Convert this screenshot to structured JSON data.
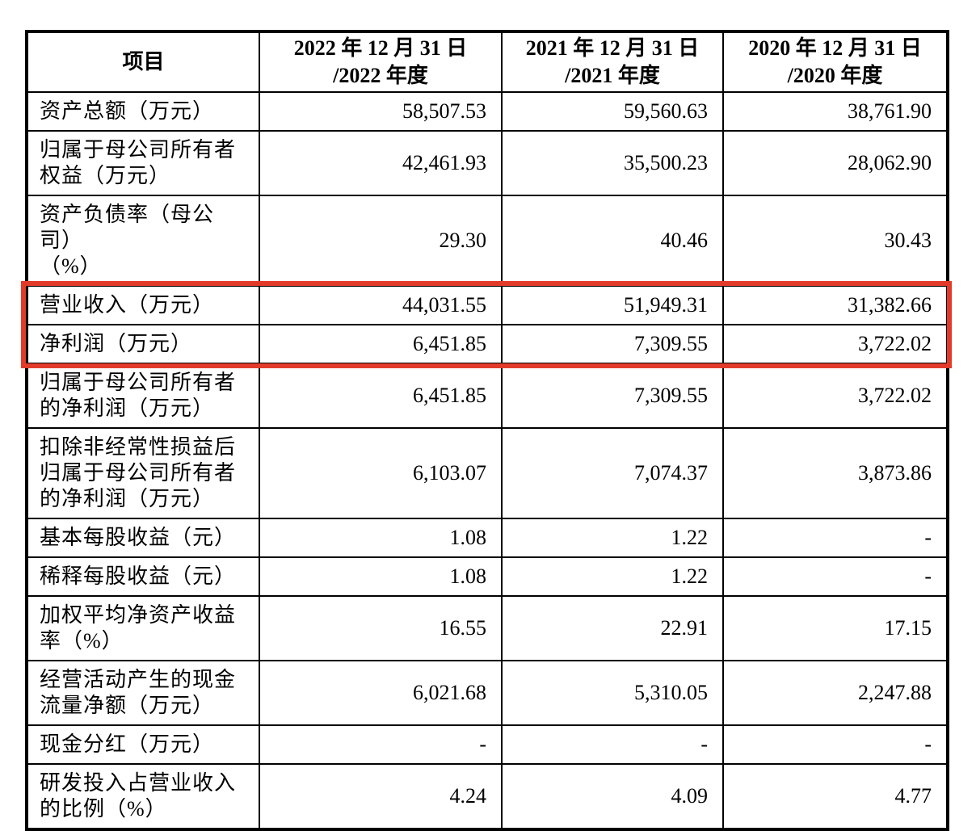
{
  "page": {
    "background": "#ffffff"
  },
  "highlight": {
    "color": "#e23b2a",
    "purpose": "highlight-revenue-and-net-profit-rows"
  },
  "table": {
    "header": {
      "item": "项目",
      "periods": [
        "2022 年 12 月 31 日\n/2022 年度",
        "2021 年 12 月 31 日\n/2021 年度",
        "2020 年 12 月 31 日\n/2020 年度"
      ]
    },
    "rows": [
      {
        "label": "资产总额（万元）",
        "values": [
          "58,507.53",
          "59,560.63",
          "38,761.90"
        ],
        "highlighted": false
      },
      {
        "label": "归属于母公司所有者\n权益（万元）",
        "values": [
          "42,461.93",
          "35,500.23",
          "28,062.90"
        ],
        "highlighted": false
      },
      {
        "label": "资产负债率（母公司）\n（%）",
        "values": [
          "29.30",
          "40.46",
          "30.43"
        ],
        "highlighted": false
      },
      {
        "label": "营业收入（万元）",
        "values": [
          "44,031.55",
          "51,949.31",
          "31,382.66"
        ],
        "highlighted": true
      },
      {
        "label": "净利润（万元）",
        "values": [
          "6,451.85",
          "7,309.55",
          "3,722.02"
        ],
        "highlighted": true
      },
      {
        "label": "归属于母公司所有者\n的净利润（万元）",
        "values": [
          "6,451.85",
          "7,309.55",
          "3,722.02"
        ],
        "highlighted": false
      },
      {
        "label": "扣除非经常性损益后\n归属于母公司所有者\n的净利润（万元）",
        "values": [
          "6,103.07",
          "7,074.37",
          "3,873.86"
        ],
        "highlighted": false
      },
      {
        "label": "基本每股收益（元）",
        "values": [
          "1.08",
          "1.22",
          "-"
        ],
        "highlighted": false
      },
      {
        "label": "稀释每股收益（元）",
        "values": [
          "1.08",
          "1.22",
          "-"
        ],
        "highlighted": false
      },
      {
        "label": "加权平均净资产收益\n率（%）",
        "values": [
          "16.55",
          "22.91",
          "17.15"
        ],
        "highlighted": false
      },
      {
        "label": "经营活动产生的现金\n流量净额（万元）",
        "values": [
          "6,021.68",
          "5,310.05",
          "2,247.88"
        ],
        "highlighted": false
      },
      {
        "label": "现金分红（万元）",
        "values": [
          "-",
          "-",
          "-"
        ],
        "highlighted": false
      },
      {
        "label": "研发投入占营业收入\n的比例（%）",
        "values": [
          "4.24",
          "4.09",
          "4.77"
        ],
        "highlighted": false
      }
    ]
  }
}
